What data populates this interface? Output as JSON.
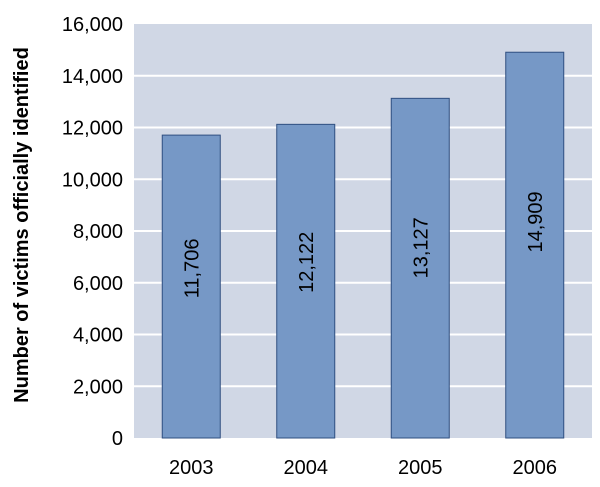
{
  "chart_data": {
    "type": "bar",
    "title": "",
    "xlabel": "",
    "ylabel": "Number of victims officially identified",
    "categories": [
      "2003",
      "2004",
      "2005",
      "2006"
    ],
    "values": [
      11706,
      12122,
      13127,
      14909
    ],
    "data_labels": [
      "11,706",
      "12,122",
      "13,127",
      "14,909"
    ],
    "ylim": [
      0,
      16000
    ],
    "yticks": [
      0,
      2000,
      4000,
      6000,
      8000,
      10000,
      12000,
      14000,
      16000
    ],
    "ytick_labels": [
      "0",
      "2,000",
      "4,000",
      "6,000",
      "8,000",
      "10,000",
      "12,000",
      "14,000",
      "16,000"
    ],
    "grid": true,
    "legend": "none",
    "colors": {
      "plot_bg": "#d0d7e5",
      "bar": "#7698c6",
      "bar_border": "#2f4f80",
      "grid": "#ffffff"
    }
  }
}
